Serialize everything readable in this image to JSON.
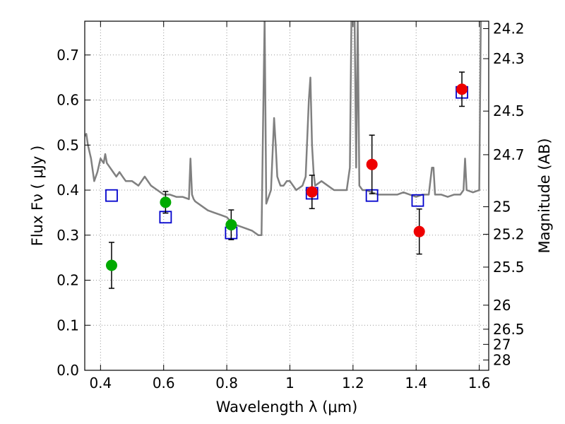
{
  "chart_data": {
    "type": "scatter",
    "xlabel": "Wavelength  λ (μm)",
    "ylabel": "Flux  Fν  ( μJy )",
    "y2label": "Magnitude (AB)",
    "xlim": [
      0.35,
      1.63
    ],
    "ylim": [
      0.0,
      0.775
    ],
    "grid": true,
    "x_ticks": [
      0.4,
      0.6,
      0.8,
      1.0,
      1.2,
      1.4,
      1.6
    ],
    "x_tick_labels": [
      "0.4",
      "0.6",
      "0.8",
      "1",
      "1.2",
      "1.4",
      "1.6"
    ],
    "y_ticks": [
      0.0,
      0.1,
      0.2,
      0.3,
      0.4,
      0.5,
      0.6,
      0.7
    ],
    "y_tick_labels": [
      "0.0",
      "0.1",
      "0.2",
      "0.3",
      "0.4",
      "0.5",
      "0.6",
      "0.7"
    ],
    "y2_tick_labels": [
      "24.2",
      "24.3",
      "24.5",
      "24.7",
      "25",
      "25.2",
      "25.5",
      "26",
      "26.5",
      "27",
      "28"
    ],
    "colors": {
      "template": "#808080",
      "green": "#00aa00",
      "red": "#ee0000",
      "model": "#0000cc",
      "errorbar": "#000000",
      "grid": "#999999"
    },
    "series": [
      {
        "marker": "green-circle",
        "x": [
          0.435,
          0.606,
          0.814
        ],
        "y": [
          0.233,
          0.373,
          0.323
        ],
        "err": [
          0.051,
          0.024,
          0.033
        ]
      },
      {
        "marker": "red-circle",
        "x": [
          1.07,
          1.26,
          1.41,
          1.545
        ],
        "y": [
          0.396,
          0.457,
          0.308,
          0.624
        ],
        "err": [
          0.037,
          0.065,
          0.05,
          0.038
        ]
      },
      {
        "marker": "blue-square",
        "x": [
          0.435,
          0.606,
          0.814,
          1.07,
          1.26,
          1.405,
          1.545
        ],
        "y": [
          0.388,
          0.34,
          0.305,
          0.393,
          0.388,
          0.377,
          0.617
        ]
      },
      {
        "marker": "grey-line",
        "x": [
          0.35,
          0.355,
          0.36,
          0.37,
          0.38,
          0.39,
          0.4,
          0.41,
          0.415,
          0.42,
          0.43,
          0.44,
          0.45,
          0.46,
          0.47,
          0.48,
          0.5,
          0.52,
          0.54,
          0.56,
          0.58,
          0.6,
          0.62,
          0.64,
          0.66,
          0.68,
          0.685,
          0.69,
          0.695,
          0.7,
          0.72,
          0.74,
          0.76,
          0.78,
          0.8,
          0.82,
          0.84,
          0.86,
          0.88,
          0.9,
          0.91,
          0.915,
          0.92,
          0.925,
          0.93,
          0.94,
          0.95,
          0.955,
          0.96,
          0.965,
          0.97,
          0.98,
          0.99,
          1.0,
          1.02,
          1.04,
          1.05,
          1.06,
          1.065,
          1.07,
          1.075,
          1.08,
          1.1,
          1.12,
          1.14,
          1.16,
          1.18,
          1.19,
          1.195,
          1.2,
          1.205,
          1.21,
          1.215,
          1.22,
          1.23,
          1.24,
          1.26,
          1.28,
          1.3,
          1.32,
          1.34,
          1.36,
          1.38,
          1.4,
          1.42,
          1.44,
          1.45,
          1.455,
          1.46,
          1.48,
          1.5,
          1.52,
          1.54,
          1.55,
          1.555,
          1.56,
          1.58,
          1.6,
          1.605,
          1.61,
          1.63
        ],
        "y": [
          0.52,
          0.525,
          0.5,
          0.47,
          0.42,
          0.44,
          0.47,
          0.46,
          0.48,
          0.46,
          0.45,
          0.44,
          0.43,
          0.44,
          0.43,
          0.42,
          0.42,
          0.41,
          0.43,
          0.41,
          0.4,
          0.39,
          0.39,
          0.385,
          0.385,
          0.38,
          0.47,
          0.39,
          0.38,
          0.375,
          0.365,
          0.355,
          0.35,
          0.345,
          0.34,
          0.325,
          0.32,
          0.315,
          0.31,
          0.3,
          0.3,
          0.55,
          0.78,
          0.37,
          0.38,
          0.4,
          0.56,
          0.5,
          0.43,
          0.42,
          0.41,
          0.41,
          0.42,
          0.42,
          0.4,
          0.41,
          0.43,
          0.6,
          0.65,
          0.5,
          0.44,
          0.41,
          0.42,
          0.41,
          0.4,
          0.4,
          0.4,
          0.45,
          0.78,
          0.78,
          0.78,
          0.45,
          0.78,
          0.41,
          0.4,
          0.4,
          0.395,
          0.39,
          0.39,
          0.39,
          0.39,
          0.395,
          0.39,
          0.385,
          0.39,
          0.39,
          0.45,
          0.45,
          0.39,
          0.39,
          0.385,
          0.39,
          0.39,
          0.4,
          0.47,
          0.4,
          0.395,
          0.4,
          0.78,
          0.78,
          0.78
        ]
      }
    ]
  }
}
